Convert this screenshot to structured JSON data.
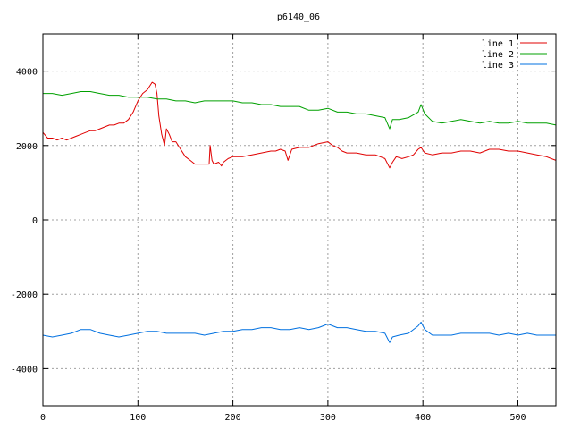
{
  "chart_data": {
    "type": "line",
    "title": "p6140_06",
    "xlabel": "",
    "ylabel": "",
    "xlim": [
      0,
      540
    ],
    "ylim": [
      -5000,
      5000
    ],
    "grid": true,
    "legend_position": "top-right",
    "x_ticks": [
      {
        "value": 0,
        "label": "0"
      },
      {
        "value": 100,
        "label": "100"
      },
      {
        "value": 200,
        "label": "200"
      },
      {
        "value": 300,
        "label": "300"
      },
      {
        "value": 400,
        "label": "400"
      },
      {
        "value": 500,
        "label": "500"
      }
    ],
    "y_ticks": [
      {
        "value": 4000,
        "label": "4000"
      },
      {
        "value": 2000,
        "label": "2000"
      },
      {
        "value": 0,
        "label": "0"
      },
      {
        "value": -2000,
        "label": "-2000"
      },
      {
        "value": -4000,
        "label": "-4000"
      }
    ],
    "series": [
      {
        "name": "line 1",
        "color": "#e00000",
        "points": [
          [
            0,
            2350
          ],
          [
            5,
            2200
          ],
          [
            10,
            2200
          ],
          [
            15,
            2150
          ],
          [
            20,
            2200
          ],
          [
            25,
            2150
          ],
          [
            30,
            2200
          ],
          [
            35,
            2250
          ],
          [
            40,
            2300
          ],
          [
            45,
            2350
          ],
          [
            50,
            2400
          ],
          [
            55,
            2400
          ],
          [
            60,
            2450
          ],
          [
            65,
            2500
          ],
          [
            70,
            2550
          ],
          [
            75,
            2550
          ],
          [
            80,
            2600
          ],
          [
            85,
            2600
          ],
          [
            90,
            2700
          ],
          [
            95,
            2900
          ],
          [
            100,
            3200
          ],
          [
            105,
            3400
          ],
          [
            110,
            3500
          ],
          [
            115,
            3700
          ],
          [
            118,
            3650
          ],
          [
            120,
            3400
          ],
          [
            122,
            2800
          ],
          [
            125,
            2300
          ],
          [
            128,
            2000
          ],
          [
            130,
            2450
          ],
          [
            133,
            2300
          ],
          [
            136,
            2100
          ],
          [
            140,
            2100
          ],
          [
            145,
            1900
          ],
          [
            150,
            1700
          ],
          [
            155,
            1600
          ],
          [
            160,
            1500
          ],
          [
            165,
            1500
          ],
          [
            170,
            1500
          ],
          [
            175,
            1500
          ],
          [
            176,
            2000
          ],
          [
            178,
            1600
          ],
          [
            180,
            1500
          ],
          [
            185,
            1550
          ],
          [
            188,
            1450
          ],
          [
            190,
            1550
          ],
          [
            195,
            1650
          ],
          [
            200,
            1700
          ],
          [
            210,
            1700
          ],
          [
            220,
            1750
          ],
          [
            230,
            1800
          ],
          [
            240,
            1850
          ],
          [
            245,
            1850
          ],
          [
            250,
            1900
          ],
          [
            255,
            1850
          ],
          [
            258,
            1600
          ],
          [
            262,
            1900
          ],
          [
            270,
            1950
          ],
          [
            280,
            1950
          ],
          [
            290,
            2050
          ],
          [
            300,
            2100
          ],
          [
            305,
            2000
          ],
          [
            310,
            1950
          ],
          [
            315,
            1850
          ],
          [
            320,
            1800
          ],
          [
            330,
            1800
          ],
          [
            340,
            1750
          ],
          [
            350,
            1750
          ],
          [
            355,
            1700
          ],
          [
            360,
            1650
          ],
          [
            365,
            1400
          ],
          [
            368,
            1550
          ],
          [
            372,
            1700
          ],
          [
            378,
            1650
          ],
          [
            385,
            1700
          ],
          [
            390,
            1750
          ],
          [
            395,
            1900
          ],
          [
            398,
            1950
          ],
          [
            402,
            1800
          ],
          [
            410,
            1750
          ],
          [
            420,
            1800
          ],
          [
            430,
            1800
          ],
          [
            440,
            1850
          ],
          [
            450,
            1850
          ],
          [
            460,
            1800
          ],
          [
            470,
            1900
          ],
          [
            480,
            1900
          ],
          [
            490,
            1850
          ],
          [
            500,
            1850
          ],
          [
            510,
            1800
          ],
          [
            520,
            1750
          ],
          [
            530,
            1700
          ],
          [
            535,
            1650
          ],
          [
            540,
            1600
          ]
        ]
      },
      {
        "name": "line 2",
        "color": "#00a000",
        "points": [
          [
            0,
            3400
          ],
          [
            10,
            3400
          ],
          [
            20,
            3350
          ],
          [
            30,
            3400
          ],
          [
            40,
            3450
          ],
          [
            50,
            3450
          ],
          [
            60,
            3400
          ],
          [
            70,
            3350
          ],
          [
            80,
            3350
          ],
          [
            90,
            3300
          ],
          [
            100,
            3300
          ],
          [
            110,
            3300
          ],
          [
            120,
            3250
          ],
          [
            130,
            3250
          ],
          [
            140,
            3200
          ],
          [
            150,
            3200
          ],
          [
            160,
            3150
          ],
          [
            170,
            3200
          ],
          [
            180,
            3200
          ],
          [
            190,
            3200
          ],
          [
            200,
            3200
          ],
          [
            210,
            3150
          ],
          [
            220,
            3150
          ],
          [
            230,
            3100
          ],
          [
            240,
            3100
          ],
          [
            250,
            3050
          ],
          [
            260,
            3050
          ],
          [
            270,
            3050
          ],
          [
            280,
            2950
          ],
          [
            290,
            2950
          ],
          [
            300,
            3000
          ],
          [
            310,
            2900
          ],
          [
            320,
            2900
          ],
          [
            330,
            2850
          ],
          [
            340,
            2850
          ],
          [
            350,
            2800
          ],
          [
            360,
            2750
          ],
          [
            365,
            2450
          ],
          [
            368,
            2700
          ],
          [
            375,
            2700
          ],
          [
            385,
            2750
          ],
          [
            395,
            2900
          ],
          [
            398,
            3100
          ],
          [
            402,
            2850
          ],
          [
            410,
            2650
          ],
          [
            420,
            2600
          ],
          [
            430,
            2650
          ],
          [
            440,
            2700
          ],
          [
            450,
            2650
          ],
          [
            460,
            2600
          ],
          [
            470,
            2650
          ],
          [
            480,
            2600
          ],
          [
            490,
            2600
          ],
          [
            500,
            2650
          ],
          [
            510,
            2600
          ],
          [
            520,
            2600
          ],
          [
            530,
            2600
          ],
          [
            540,
            2550
          ]
        ]
      },
      {
        "name": "line 3",
        "color": "#0070e0",
        "points": [
          [
            0,
            -3100
          ],
          [
            10,
            -3150
          ],
          [
            20,
            -3100
          ],
          [
            30,
            -3050
          ],
          [
            40,
            -2950
          ],
          [
            50,
            -2950
          ],
          [
            60,
            -3050
          ],
          [
            70,
            -3100
          ],
          [
            80,
            -3150
          ],
          [
            90,
            -3100
          ],
          [
            100,
            -3050
          ],
          [
            110,
            -3000
          ],
          [
            120,
            -3000
          ],
          [
            130,
            -3050
          ],
          [
            140,
            -3050
          ],
          [
            150,
            -3050
          ],
          [
            160,
            -3050
          ],
          [
            170,
            -3100
          ],
          [
            180,
            -3050
          ],
          [
            190,
            -3000
          ],
          [
            200,
            -3000
          ],
          [
            210,
            -2950
          ],
          [
            220,
            -2950
          ],
          [
            230,
            -2900
          ],
          [
            240,
            -2900
          ],
          [
            250,
            -2950
          ],
          [
            260,
            -2950
          ],
          [
            270,
            -2900
          ],
          [
            280,
            -2950
          ],
          [
            290,
            -2900
          ],
          [
            300,
            -2800
          ],
          [
            310,
            -2900
          ],
          [
            320,
            -2900
          ],
          [
            330,
            -2950
          ],
          [
            340,
            -3000
          ],
          [
            350,
            -3000
          ],
          [
            360,
            -3050
          ],
          [
            365,
            -3300
          ],
          [
            368,
            -3150
          ],
          [
            375,
            -3100
          ],
          [
            385,
            -3050
          ],
          [
            395,
            -2850
          ],
          [
            398,
            -2750
          ],
          [
            402,
            -2950
          ],
          [
            410,
            -3100
          ],
          [
            420,
            -3100
          ],
          [
            430,
            -3100
          ],
          [
            440,
            -3050
          ],
          [
            450,
            -3050
          ],
          [
            460,
            -3050
          ],
          [
            470,
            -3050
          ],
          [
            480,
            -3100
          ],
          [
            490,
            -3050
          ],
          [
            500,
            -3100
          ],
          [
            510,
            -3050
          ],
          [
            520,
            -3100
          ],
          [
            530,
            -3100
          ],
          [
            540,
            -3100
          ]
        ]
      }
    ]
  }
}
